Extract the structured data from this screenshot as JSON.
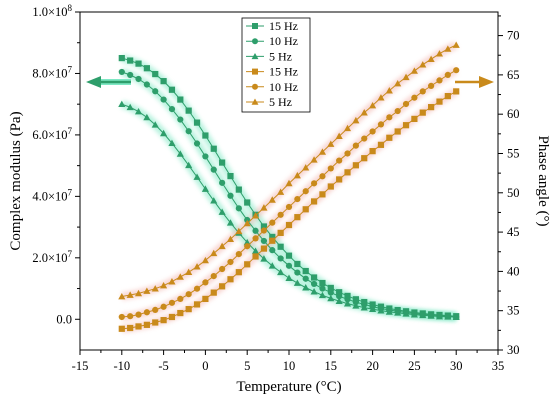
{
  "chart_data": {
    "type": "line",
    "xlabel": "Temperature (°C)",
    "ylabel_left": "Complex modulus (Pa)",
    "ylabel_right": "Phase angle (°)",
    "xlim": [
      -15,
      35
    ],
    "xticks": [
      -15,
      -10,
      -5,
      0,
      5,
      10,
      15,
      20,
      25,
      30,
      35
    ],
    "ylim_left": [
      -10000000,
      100000000
    ],
    "yticks_left": [
      {
        "value": 0,
        "mantissa": "0.0",
        "exp": ""
      },
      {
        "value": 20000000,
        "mantissa": "2.0×10",
        "exp": "7"
      },
      {
        "value": 40000000,
        "mantissa": "4.0×10",
        "exp": "7"
      },
      {
        "value": 60000000,
        "mantissa": "6.0×10",
        "exp": "7"
      },
      {
        "value": 80000000,
        "mantissa": "8.0×10",
        "exp": "7"
      },
      {
        "value": 100000000,
        "mantissa": "1.0×10",
        "exp": "8"
      }
    ],
    "ylim_right": [
      30,
      73
    ],
    "yticks_right": [
      30,
      35,
      40,
      45,
      50,
      55,
      60,
      65,
      70
    ],
    "legend_position": "top-center",
    "grid": false,
    "colors": {
      "modulus": "#2e9e6b",
      "modulus_glow": "#7fe8c4",
      "phase": "#c98a1b",
      "phase_glow": "#f3b7b0"
    },
    "x": [
      -10,
      -9,
      -8,
      -7,
      -6,
      -5,
      -4,
      -3,
      -2,
      -1,
      0,
      1,
      2,
      3,
      4,
      5,
      6,
      7,
      8,
      9,
      10,
      11,
      12,
      13,
      14,
      15,
      16,
      17,
      18,
      19,
      20,
      21,
      22,
      23,
      24,
      25,
      26,
      27,
      28,
      29,
      30
    ],
    "series": [
      {
        "name": "15 Hz",
        "axis": "left",
        "marker": "square",
        "color": "#2e9e6b",
        "values": [
          85000000,
          84200000,
          83200000,
          81700000,
          79800000,
          77500000,
          74700000,
          71500000,
          67900000,
          64000000,
          59800000,
          55500000,
          51000000,
          46600000,
          42200000,
          38000000,
          34000000,
          30200000,
          26800000,
          23600000,
          20700000,
          18000000,
          15700000,
          13600000,
          11800000,
          10200000,
          8800000,
          7600000,
          6500000,
          5600000,
          4800000,
          4100000,
          3500000,
          3000000,
          2600000,
          2200000,
          1900000,
          1600000,
          1400000,
          1200000,
          1000000
        ]
      },
      {
        "name": "10 Hz",
        "axis": "left",
        "marker": "circle",
        "color": "#2e9e6b",
        "values": [
          80500000,
          79500000,
          78200000,
          76400000,
          74200000,
          71500000,
          68400000,
          65000000,
          61200000,
          57200000,
          53000000,
          48700000,
          44400000,
          40200000,
          36100000,
          32300000,
          28800000,
          25500000,
          22500000,
          19800000,
          17400000,
          15200000,
          13200000,
          11500000,
          10000000,
          8700000,
          7500000,
          6500000,
          5600000,
          4800000,
          4100000,
          3500000,
          3000000,
          2600000,
          2200000,
          1900000,
          1600000,
          1400000,
          1200000,
          1000000,
          800000
        ]
      },
      {
        "name": "5 Hz",
        "axis": "left",
        "marker": "triangle",
        "color": "#2e9e6b",
        "values": [
          70000000,
          69000000,
          67600000,
          65700000,
          63300000,
          60500000,
          57300000,
          53800000,
          50100000,
          46300000,
          42400000,
          38600000,
          34900000,
          31400000,
          28100000,
          25000000,
          22200000,
          19700000,
          17400000,
          15300000,
          13400000,
          11800000,
          10300000,
          9000000,
          7800000,
          6800000,
          5900000,
          5100000,
          4400000,
          3800000,
          3300000,
          2800000,
          2400000,
          2100000,
          1800000,
          1500000,
          1300000,
          1100000,
          900000,
          800000,
          700000
        ]
      },
      {
        "name": "15 Hz",
        "axis": "right",
        "marker": "square",
        "color": "#c98a1b",
        "values": [
          32.7,
          32.8,
          33.0,
          33.2,
          33.5,
          33.8,
          34.2,
          34.7,
          35.2,
          35.8,
          36.5,
          37.3,
          38.1,
          39.0,
          39.9,
          40.9,
          41.9,
          42.9,
          43.9,
          44.9,
          45.9,
          46.9,
          47.9,
          48.9,
          49.8,
          50.8,
          51.7,
          52.6,
          53.5,
          54.4,
          55.3,
          56.1,
          57.0,
          57.8,
          58.6,
          59.4,
          60.2,
          60.9,
          61.6,
          62.3,
          62.9
        ]
      },
      {
        "name": "10 Hz",
        "axis": "right",
        "marker": "circle",
        "color": "#c98a1b",
        "values": [
          34.2,
          34.3,
          34.5,
          34.8,
          35.1,
          35.5,
          36.0,
          36.5,
          37.1,
          37.8,
          38.6,
          39.4,
          40.3,
          41.2,
          42.2,
          43.2,
          44.2,
          45.2,
          46.2,
          47.2,
          48.2,
          49.2,
          50.2,
          51.2,
          52.1,
          53.1,
          54.1,
          55.0,
          56.0,
          56.9,
          57.8,
          58.7,
          59.6,
          60.4,
          61.3,
          62.1,
          62.9,
          63.6,
          64.3,
          65.0,
          65.6
        ]
      },
      {
        "name": "5 Hz",
        "axis": "right",
        "marker": "triangle",
        "color": "#c98a1b",
        "values": [
          36.8,
          37.0,
          37.2,
          37.5,
          37.8,
          38.2,
          38.7,
          39.3,
          39.9,
          40.6,
          41.4,
          42.3,
          43.2,
          44.1,
          45.1,
          46.1,
          47.1,
          48.1,
          49.1,
          50.1,
          51.2,
          52.2,
          53.2,
          54.2,
          55.2,
          56.2,
          57.2,
          58.2,
          59.2,
          60.2,
          61.1,
          62.1,
          63.0,
          63.9,
          64.7,
          65.5,
          66.3,
          67.0,
          67.7,
          68.3,
          68.8
        ]
      }
    ]
  }
}
